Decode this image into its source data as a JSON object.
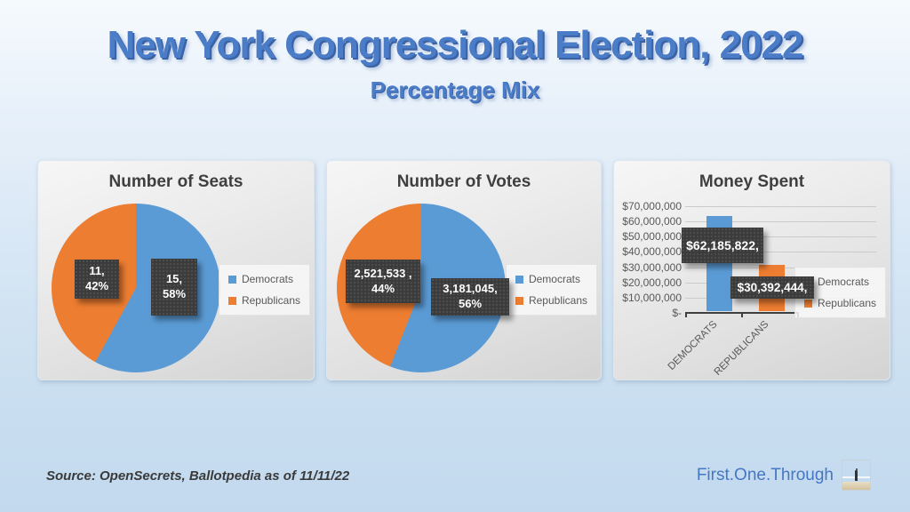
{
  "slide": {
    "title": "New York Congressional Election, 2022",
    "subtitle": "Percentage Mix",
    "source_note": "Source: OpenSecrets, Ballotpedia as of 11/11/22",
    "brand": "First.One.Through"
  },
  "colors": {
    "democrats": "#5B9BD5",
    "republicans": "#ED7D31",
    "title_blue": "#4A7CC7",
    "label_box": "#3B3B3B",
    "chart_title_text": "#3F3F3F",
    "axis_text": "#595959"
  },
  "legend": {
    "democrats": "Democrats",
    "republicans": "Republicans"
  },
  "charts": {
    "seats": {
      "title": "Number of Seats",
      "dem_label_line1": "15,",
      "dem_label_line2": "58%",
      "rep_label_line1": "11,",
      "rep_label_line2": "42%"
    },
    "votes": {
      "title": "Number of Votes",
      "dem_label_line1": "3,181,045,",
      "dem_label_line2": "56%",
      "rep_label_line1": "2,521,533 ,",
      "rep_label_line2": "44%"
    },
    "money": {
      "title": "Money Spent",
      "dem_label": "$62,185,822,",
      "rep_label": "$30,392,444,",
      "cat_dem": "DEMOCRATS",
      "cat_rep": "REPUBLICANS",
      "yticks": [
        "$70,000,000",
        "$60,000,000",
        "$50,000,000",
        "$40,000,000",
        "$30,000,000",
        "$20,000,000",
        "$10,000,000",
        "$-"
      ]
    }
  },
  "chart_data": [
    {
      "type": "pie",
      "title": "Number of Seats",
      "categories": [
        "Democrats",
        "Republicans"
      ],
      "values": [
        15,
        11
      ],
      "percents": [
        58,
        42
      ],
      "data_labels": [
        "15, 58%",
        "11, 42%"
      ],
      "colors": [
        "#5B9BD5",
        "#ED7D31"
      ],
      "legend_position": "right"
    },
    {
      "type": "pie",
      "title": "Number of Votes",
      "categories": [
        "Democrats",
        "Republicans"
      ],
      "values": [
        3181045,
        2521533
      ],
      "percents": [
        56,
        44
      ],
      "data_labels": [
        "3,181,045, 56%",
        "2,521,533 , 44%"
      ],
      "colors": [
        "#5B9BD5",
        "#ED7D31"
      ],
      "legend_position": "right"
    },
    {
      "type": "bar",
      "title": "Money Spent",
      "categories": [
        "DEMOCRATS",
        "REPUBLICANS"
      ],
      "values": [
        62185822,
        30392444
      ],
      "data_labels": [
        "$62,185,822,",
        "$30,392,444,"
      ],
      "colors": [
        "#5B9BD5",
        "#ED7D31"
      ],
      "ylim": [
        0,
        70000000
      ],
      "ytick_step": 10000000,
      "ytick_labels": [
        "$70,000,000",
        "$60,000,000",
        "$50,000,000",
        "$40,000,000",
        "$30,000,000",
        "$20,000,000",
        "$10,000,000",
        "$-"
      ],
      "grid": true,
      "legend_position": "right"
    }
  ]
}
